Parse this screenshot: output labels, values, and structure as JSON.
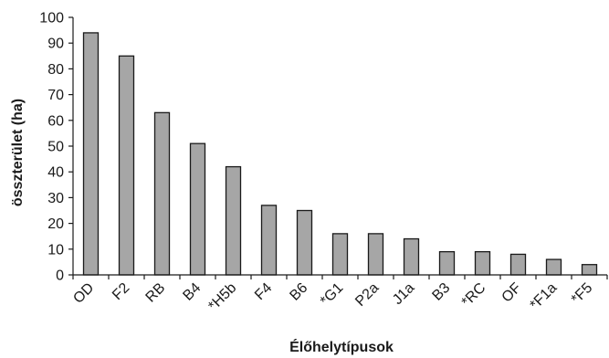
{
  "chart_data": {
    "type": "bar",
    "categories": [
      "OD",
      "F2",
      "RB",
      "B4",
      "*H5b",
      "F4",
      "B6",
      "*G1",
      "P2a",
      "J1a",
      "B3",
      "*RC",
      "OF",
      "*F1a",
      "*F5"
    ],
    "values": [
      94,
      85,
      63,
      51,
      42,
      27,
      25,
      16,
      16,
      14,
      9,
      9,
      8,
      6,
      4
    ],
    "xlabel": "Élőhelytípusok",
    "ylabel": "összterület (ha)",
    "ylim": [
      0,
      100
    ],
    "yticks": [
      0,
      10,
      20,
      30,
      40,
      50,
      60,
      70,
      80,
      90,
      100
    ],
    "grid": false,
    "legend": "none",
    "bar_color": "#a6a6a6",
    "bar_edge_color": "#1a1a1a"
  }
}
